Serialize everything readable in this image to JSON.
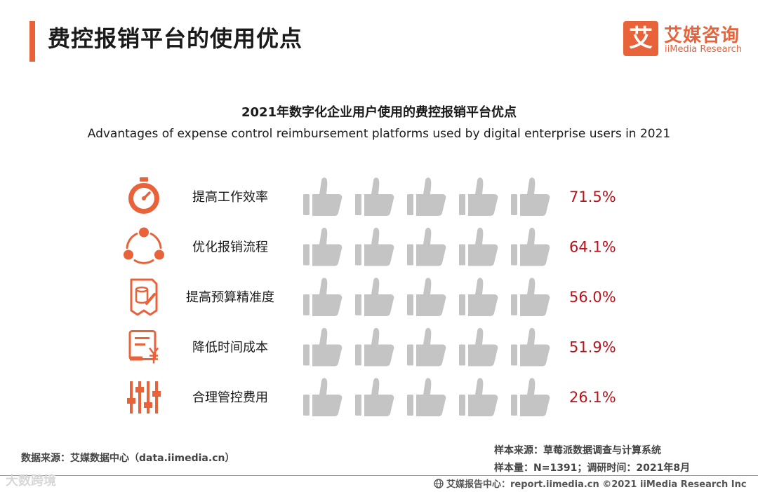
{
  "header": {
    "page_title": "费控报销平台的使用优点",
    "logo_mark": "艾",
    "logo_cn": "艾媒咨询",
    "logo_en": "iiMedia Research"
  },
  "colors": {
    "accent": "#e8623a",
    "thumb_gray": "#c4c4c4",
    "value_red": "#b8141b"
  },
  "chart_data": {
    "type": "pictograph",
    "title": "2021年数字化企业用户使用的费控报销平台优点",
    "subtitle": "Advantages of expense control reimbursement platforms used by digital enterprise users in 2021",
    "icons_per_row": 5,
    "scale_max": 100,
    "categories": [
      {
        "label": "提高工作效率",
        "value": 71.5,
        "display": "71.5%",
        "icon": "stopwatch-icon"
      },
      {
        "label": "优化报销流程",
        "value": 64.1,
        "display": "64.1%",
        "icon": "process-cycle-icon"
      },
      {
        "label": "提高预算精准度",
        "value": 56.0,
        "display": "56.0%",
        "icon": "budget-document-icon"
      },
      {
        "label": "降低时间成本",
        "value": 51.9,
        "display": "51.9%",
        "icon": "cost-receipt-icon"
      },
      {
        "label": "合理管控费用",
        "value": 26.1,
        "display": "26.1%",
        "icon": "control-sliders-icon"
      }
    ]
  },
  "footer": {
    "source": "数据来源：艾媒数据中心（data.iimedia.cn）",
    "sample_source": "样本来源：草莓派数据调查与计算系统",
    "sample_size": "样本量：N=1391；调研时间：2021年8月",
    "report_center": "艾媒报告中心：report.iimedia.cn  ©2021  iiMedia Research  Inc",
    "watermark": "大数跨境"
  }
}
